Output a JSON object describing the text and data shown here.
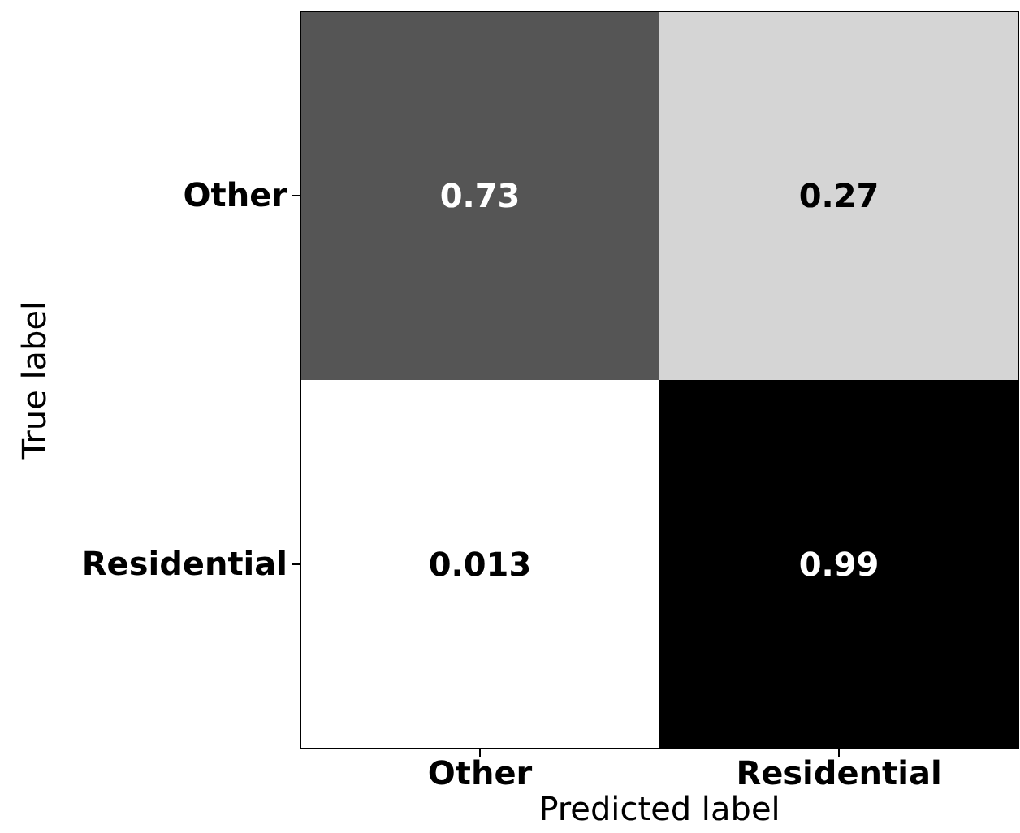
{
  "chart_data": {
    "type": "heatmap",
    "xlabel": "Predicted label",
    "ylabel": "True label",
    "categories": [
      "Other",
      "Residential"
    ],
    "y_categories": [
      "Other",
      "Residential"
    ],
    "data_labels": true,
    "cells": [
      [
        0.73,
        0.27
      ],
      [
        0.013,
        0.99
      ]
    ]
  }
}
